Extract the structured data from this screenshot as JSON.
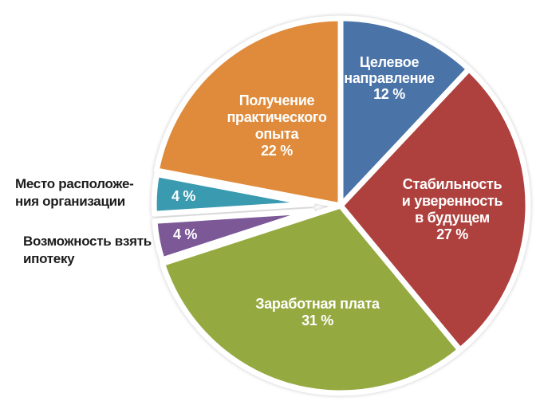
{
  "figure": {
    "background": "#ffffff"
  },
  "chart_data": {
    "type": "pie",
    "title": "",
    "unit": "%",
    "total": 100,
    "direction": "clockwise",
    "start_angle_deg": 0,
    "legend": "none",
    "slices": [
      {
        "label": "Целевое направление",
        "value": 12,
        "display_value": "12 %",
        "color": "#4a73a8",
        "label_color": "#ffffff",
        "label_lines": [
          "Целевое",
          "направление",
          "12 %"
        ],
        "label_placement": "inside"
      },
      {
        "label": "Стабильность и уверенность в будущем",
        "value": 27,
        "display_value": "27 %",
        "color": "#ae413e",
        "label_color": "#ffffff",
        "label_lines": [
          "Стабильность",
          "и уверенность",
          "в будущем",
          "27 %"
        ],
        "label_placement": "inside"
      },
      {
        "label": "Заработная плата",
        "value": 31,
        "display_value": "31 %",
        "color": "#94aa40",
        "label_color": "#ffffff",
        "label_lines": [
          "Заработная плата",
          "31 %"
        ],
        "label_placement": "inside"
      },
      {
        "label": "Возможность взять ипотеку",
        "value": 4,
        "display_value": "4 %",
        "color": "#7c5897",
        "label_color": "#ffffff",
        "label_lines": [
          "4 %"
        ],
        "label_placement": "inside",
        "outside_label_ref": "mortgage",
        "exploded": true
      },
      {
        "label": "Место расположения организации",
        "value": 4,
        "display_value": "4 %",
        "color": "#3a9ab0",
        "label_color": "#ffffff",
        "label_lines": [
          "4 %"
        ],
        "label_placement": "inside",
        "outside_label_ref": "location",
        "exploded": true
      },
      {
        "label": "Получение практического опыта",
        "value": 22,
        "display_value": "22 %",
        "color": "#e08b3b",
        "label_color": "#ffffff",
        "label_lines": [
          "Получение",
          "практического",
          "опыта",
          "22 %"
        ],
        "label_placement": "inside"
      }
    ]
  },
  "outside_labels": {
    "location": {
      "line1": "Место расположе-",
      "line2": "ния организации"
    },
    "mortgage": {
      "line1": "Возможность взять",
      "line2": "ипотеку"
    }
  },
  "colors": {
    "slice_gap": "#ffffff",
    "outside_label_text": "#1c1c1c"
  }
}
